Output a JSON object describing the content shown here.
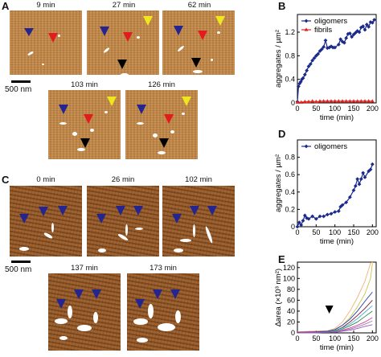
{
  "panels": {
    "A": "A",
    "B": "B",
    "C": "C",
    "D": "D",
    "E": "E"
  },
  "panelA": {
    "times": [
      "9 min",
      "27 min",
      "62 min",
      "103 min",
      "126 min"
    ],
    "scale": "500 nm"
  },
  "panelC": {
    "times": [
      "0 min",
      "26 min",
      "102 min",
      "137 min",
      "173 min"
    ],
    "scale": "500 nm"
  },
  "colors": {
    "oligomer": "#1c2a8c",
    "fibril": "#e8201c",
    "arrow_blue": "#25258f",
    "arrow_red": "#e21c1c",
    "arrow_yellow": "#f0e61e",
    "arrow_black": "#000000"
  },
  "chart_data": [
    {
      "type": "line",
      "panel": "B",
      "ylabel": "aggregates / µm²",
      "xlabel": "time (min)",
      "xlim": [
        0,
        210
      ],
      "ylim": [
        0,
        1.5
      ],
      "xticks": [
        0,
        50,
        100,
        150,
        200
      ],
      "yticks": [
        0,
        0.4,
        0.8,
        1.2
      ],
      "legend_position": "top-left",
      "series": [
        {
          "name": "oligomers",
          "color": "#1c2a8c",
          "marker": "diamond",
          "x": [
            0,
            3,
            6,
            9,
            12,
            15,
            20,
            25,
            30,
            35,
            40,
            45,
            50,
            55,
            60,
            65,
            70,
            75,
            80,
            85,
            90,
            95,
            100,
            110,
            115,
            120,
            125,
            130,
            135,
            140,
            145,
            150,
            155,
            160,
            165,
            170,
            175,
            180,
            185,
            190,
            195,
            200,
            205
          ],
          "y": [
            0.02,
            0.28,
            0.33,
            0.36,
            0.4,
            0.42,
            0.48,
            0.55,
            0.62,
            0.66,
            0.72,
            0.76,
            0.8,
            0.83,
            0.88,
            0.91,
            0.95,
            1.06,
            0.93,
            0.94,
            0.96,
            0.94,
            0.94,
            0.99,
            1.08,
            1.04,
            1.02,
            1.1,
            1.17,
            1.18,
            1.12,
            1.16,
            1.19,
            1.22,
            1.2,
            1.28,
            1.3,
            1.24,
            1.33,
            1.29,
            1.37,
            1.36,
            1.41
          ]
        },
        {
          "name": "fibrils",
          "color": "#e8201c",
          "marker": "triangle",
          "x": [
            0,
            10,
            20,
            30,
            40,
            50,
            60,
            70,
            80,
            90,
            100,
            110,
            120,
            130,
            140,
            150,
            160,
            170,
            180,
            190,
            200
          ],
          "y": [
            0.01,
            0.01,
            0.02,
            0.02,
            0.03,
            0.02,
            0.03,
            0.03,
            0.03,
            0.03,
            0.03,
            0.03,
            0.03,
            0.03,
            0.03,
            0.03,
            0.03,
            0.03,
            0.03,
            0.03,
            0.03
          ]
        }
      ]
    },
    {
      "type": "line",
      "panel": "D",
      "ylabel": "aggregates / µm²",
      "xlabel": "time (min)",
      "xlim": [
        0,
        210
      ],
      "ylim": [
        0,
        1.0
      ],
      "xticks": [
        0,
        50,
        100,
        150,
        200
      ],
      "yticks": [
        0,
        0.2,
        0.4,
        0.6,
        0.8
      ],
      "legend_position": "top-left",
      "series": [
        {
          "name": "oligomers",
          "color": "#1c2a8c",
          "marker": "diamond",
          "x": [
            0,
            5,
            10,
            15,
            20,
            25,
            30,
            40,
            50,
            60,
            70,
            80,
            90,
            100,
            110,
            115,
            120,
            130,
            140,
            150,
            155,
            160,
            165,
            170,
            175,
            180,
            190,
            195,
            200
          ],
          "y": [
            0.0,
            0.05,
            0.02,
            0.07,
            0.13,
            0.1,
            0.09,
            0.12,
            0.09,
            0.12,
            0.12,
            0.14,
            0.15,
            0.17,
            0.18,
            0.23,
            0.25,
            0.28,
            0.34,
            0.42,
            0.47,
            0.55,
            0.49,
            0.55,
            0.62,
            0.57,
            0.64,
            0.66,
            0.72
          ]
        }
      ]
    },
    {
      "type": "line",
      "panel": "E",
      "ylabel": "∆area (×10³ nm²)",
      "xlabel": "time (min)",
      "xlim": [
        0,
        210
      ],
      "ylim": [
        0,
        130
      ],
      "xticks": [
        0,
        50,
        100,
        150,
        200
      ],
      "yticks": [
        0,
        20,
        40,
        60,
        80,
        100,
        120
      ],
      "annotation": "black arrowhead at ~85 min",
      "series": [
        {
          "color": "#f4b07a",
          "x": [
            0,
            40,
            80,
            100,
            120,
            140,
            160,
            180,
            195,
            200
          ],
          "y": [
            2,
            3,
            4,
            8,
            20,
            40,
            65,
            95,
            128,
            130
          ]
        },
        {
          "color": "#c8c850",
          "x": [
            0,
            40,
            80,
            100,
            120,
            140,
            160,
            180,
            195,
            200
          ],
          "y": [
            1,
            2,
            3,
            5,
            14,
            28,
            48,
            72,
            100,
            128
          ]
        },
        {
          "color": "#2a3aa8",
          "x": [
            0,
            40,
            80,
            100,
            120,
            140,
            160,
            180,
            200
          ],
          "y": [
            1,
            2,
            3,
            6,
            14,
            25,
            40,
            58,
            75
          ]
        },
        {
          "color": "#7a1a3a",
          "x": [
            0,
            40,
            80,
            100,
            120,
            140,
            160,
            180,
            200
          ],
          "y": [
            1,
            1,
            2,
            4,
            10,
            20,
            32,
            45,
            60
          ]
        },
        {
          "color": "#4ab0d0",
          "x": [
            0,
            40,
            80,
            100,
            120,
            140,
            160,
            180,
            200
          ],
          "y": [
            0,
            1,
            2,
            4,
            9,
            16,
            26,
            38,
            50
          ]
        },
        {
          "color": "#2a8a4a",
          "x": [
            0,
            40,
            80,
            100,
            120,
            140,
            160,
            180,
            200
          ],
          "y": [
            0,
            1,
            2,
            3,
            7,
            13,
            20,
            30,
            40
          ]
        },
        {
          "color": "#e03aa0",
          "x": [
            0,
            40,
            80,
            100,
            120,
            140,
            160,
            180,
            200
          ],
          "y": [
            0,
            1,
            1,
            2,
            5,
            9,
            14,
            20,
            28
          ]
        },
        {
          "color": "#8a8aa0",
          "x": [
            0,
            40,
            80,
            100,
            120,
            140,
            160,
            180,
            200
          ],
          "y": [
            0,
            0,
            1,
            2,
            4,
            7,
            11,
            16,
            22
          ]
        },
        {
          "color": "#a04ad0",
          "x": [
            0,
            40,
            80,
            100,
            120,
            140,
            160,
            180,
            200
          ],
          "y": [
            0,
            0,
            1,
            1,
            3,
            5,
            8,
            12,
            15
          ]
        }
      ]
    }
  ]
}
